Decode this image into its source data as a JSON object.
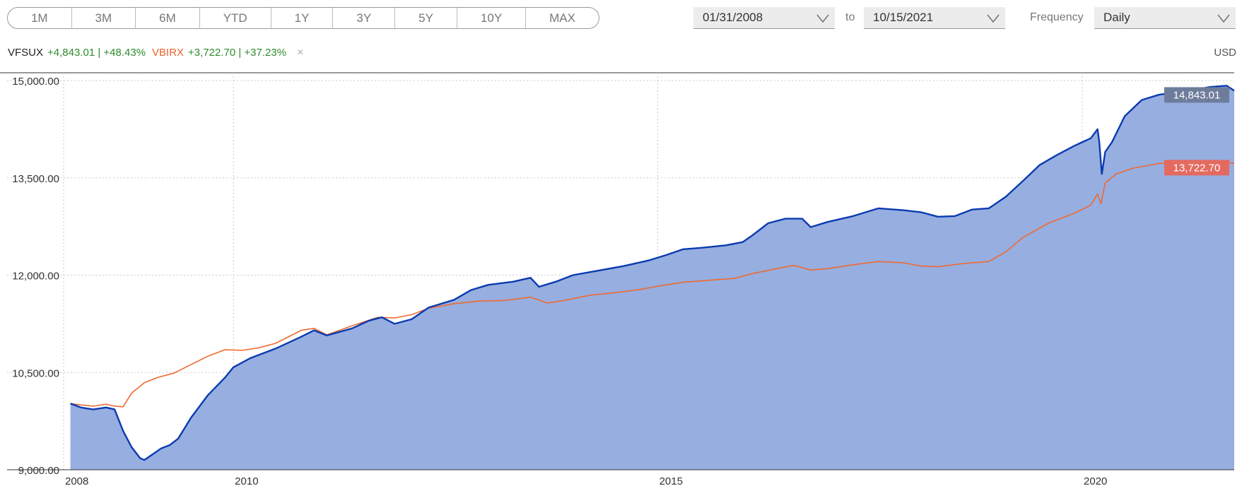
{
  "toolbar": {
    "ranges": [
      "1M",
      "3M",
      "6M",
      "YTD",
      "1Y",
      "3Y",
      "5Y",
      "10Y",
      "MAX"
    ],
    "start_date": "01/31/2008",
    "to_label": "to",
    "end_date": "10/15/2021",
    "frequency_label": "Frequency",
    "frequency_value": "Daily"
  },
  "legend": {
    "ticker1": "VFSUX",
    "ticker1_change": "+4,843.01 | +48.43%",
    "ticker2": "VBIRX",
    "ticker2_change": "+3,722.70 | +37.23%",
    "close_symbol": "×",
    "currency": "USD"
  },
  "chart_data": {
    "type": "area",
    "x_range": [
      2008.0,
      2021.79
    ],
    "ylim": [
      9000,
      15000
    ],
    "yticks": [
      9000,
      10500,
      12000,
      13500,
      15000
    ],
    "ytick_labels": [
      "9,000.00",
      "10,500.00",
      "12,000.00",
      "13,500.00",
      "15,000.00"
    ],
    "xticks": [
      2008,
      2010,
      2015,
      2020
    ],
    "xtick_labels": [
      "2008",
      "2010",
      "2015",
      "2020"
    ],
    "grid": true,
    "series": [
      {
        "name": "VFSUX",
        "color": "#0a3bb0",
        "fill": "#97aee0",
        "last_label": "14,843.01",
        "label_color": "#6e7c9c",
        "points": [
          [
            2008.08,
            10020
          ],
          [
            2008.2,
            9960
          ],
          [
            2008.35,
            9930
          ],
          [
            2008.5,
            9960
          ],
          [
            2008.6,
            9930
          ],
          [
            2008.7,
            9600
          ],
          [
            2008.8,
            9350
          ],
          [
            2008.9,
            9180
          ],
          [
            2008.95,
            9150
          ],
          [
            2009.05,
            9240
          ],
          [
            2009.15,
            9330
          ],
          [
            2009.25,
            9380
          ],
          [
            2009.35,
            9480
          ],
          [
            2009.5,
            9800
          ],
          [
            2009.7,
            10150
          ],
          [
            2009.9,
            10420
          ],
          [
            2010.0,
            10580
          ],
          [
            2010.2,
            10720
          ],
          [
            2010.5,
            10870
          ],
          [
            2010.8,
            11050
          ],
          [
            2010.95,
            11150
          ],
          [
            2011.1,
            11070
          ],
          [
            2011.4,
            11180
          ],
          [
            2011.6,
            11300
          ],
          [
            2011.75,
            11350
          ],
          [
            2011.9,
            11250
          ],
          [
            2012.1,
            11320
          ],
          [
            2012.3,
            11500
          ],
          [
            2012.6,
            11620
          ],
          [
            2012.8,
            11770
          ],
          [
            2013.0,
            11850
          ],
          [
            2013.3,
            11900
          ],
          [
            2013.5,
            11960
          ],
          [
            2013.6,
            11820
          ],
          [
            2013.8,
            11900
          ],
          [
            2014.0,
            12000
          ],
          [
            2014.3,
            12070
          ],
          [
            2014.6,
            12140
          ],
          [
            2014.9,
            12230
          ],
          [
            2015.1,
            12310
          ],
          [
            2015.3,
            12400
          ],
          [
            2015.5,
            12420
          ],
          [
            2015.8,
            12460
          ],
          [
            2016.0,
            12510
          ],
          [
            2016.1,
            12600
          ],
          [
            2016.3,
            12800
          ],
          [
            2016.5,
            12870
          ],
          [
            2016.7,
            12870
          ],
          [
            2016.8,
            12740
          ],
          [
            2017.0,
            12820
          ],
          [
            2017.3,
            12910
          ],
          [
            2017.6,
            13030
          ],
          [
            2017.9,
            13000
          ],
          [
            2018.1,
            12970
          ],
          [
            2018.3,
            12900
          ],
          [
            2018.5,
            12910
          ],
          [
            2018.7,
            13010
          ],
          [
            2018.9,
            13030
          ],
          [
            2019.1,
            13210
          ],
          [
            2019.3,
            13450
          ],
          [
            2019.5,
            13700
          ],
          [
            2019.7,
            13850
          ],
          [
            2019.9,
            13990
          ],
          [
            2020.1,
            14110
          ],
          [
            2020.18,
            14250
          ],
          [
            2020.2,
            14050
          ],
          [
            2020.23,
            13560
          ],
          [
            2020.27,
            13900
          ],
          [
            2020.35,
            14050
          ],
          [
            2020.5,
            14450
          ],
          [
            2020.7,
            14700
          ],
          [
            2020.9,
            14780
          ],
          [
            2021.1,
            14820
          ],
          [
            2021.3,
            14850
          ],
          [
            2021.5,
            14900
          ],
          [
            2021.7,
            14920
          ],
          [
            2021.79,
            14843
          ]
        ]
      },
      {
        "name": "VBIRX",
        "color": "#ee6a30",
        "last_label": "13,722.70",
        "label_color": "#e46a60",
        "points": [
          [
            2008.08,
            10020
          ],
          [
            2008.2,
            10000
          ],
          [
            2008.35,
            9980
          ],
          [
            2008.5,
            10010
          ],
          [
            2008.6,
            9980
          ],
          [
            2008.7,
            9970
          ],
          [
            2008.8,
            10180
          ],
          [
            2008.95,
            10340
          ],
          [
            2009.1,
            10420
          ],
          [
            2009.3,
            10490
          ],
          [
            2009.5,
            10620
          ],
          [
            2009.7,
            10750
          ],
          [
            2009.9,
            10850
          ],
          [
            2010.1,
            10840
          ],
          [
            2010.3,
            10880
          ],
          [
            2010.5,
            10950
          ],
          [
            2010.8,
            11150
          ],
          [
            2010.95,
            11180
          ],
          [
            2011.1,
            11080
          ],
          [
            2011.4,
            11220
          ],
          [
            2011.7,
            11350
          ],
          [
            2011.9,
            11340
          ],
          [
            2012.1,
            11390
          ],
          [
            2012.3,
            11490
          ],
          [
            2012.6,
            11560
          ],
          [
            2012.9,
            11600
          ],
          [
            2013.2,
            11610
          ],
          [
            2013.5,
            11660
          ],
          [
            2013.7,
            11570
          ],
          [
            2013.9,
            11610
          ],
          [
            2014.2,
            11690
          ],
          [
            2014.5,
            11730
          ],
          [
            2014.8,
            11780
          ],
          [
            2015.0,
            11830
          ],
          [
            2015.3,
            11890
          ],
          [
            2015.6,
            11920
          ],
          [
            2015.9,
            11950
          ],
          [
            2016.1,
            12020
          ],
          [
            2016.4,
            12100
          ],
          [
            2016.6,
            12150
          ],
          [
            2016.8,
            12080
          ],
          [
            2017.0,
            12100
          ],
          [
            2017.3,
            12160
          ],
          [
            2017.6,
            12210
          ],
          [
            2017.9,
            12190
          ],
          [
            2018.1,
            12140
          ],
          [
            2018.3,
            12130
          ],
          [
            2018.6,
            12180
          ],
          [
            2018.9,
            12210
          ],
          [
            2019.1,
            12360
          ],
          [
            2019.3,
            12580
          ],
          [
            2019.6,
            12800
          ],
          [
            2019.9,
            12950
          ],
          [
            2020.1,
            13080
          ],
          [
            2020.18,
            13250
          ],
          [
            2020.22,
            13100
          ],
          [
            2020.27,
            13420
          ],
          [
            2020.4,
            13560
          ],
          [
            2020.6,
            13650
          ],
          [
            2020.9,
            13720
          ],
          [
            2021.2,
            13740
          ],
          [
            2021.4,
            13720
          ],
          [
            2021.6,
            13760
          ],
          [
            2021.79,
            13722
          ]
        ]
      }
    ]
  }
}
